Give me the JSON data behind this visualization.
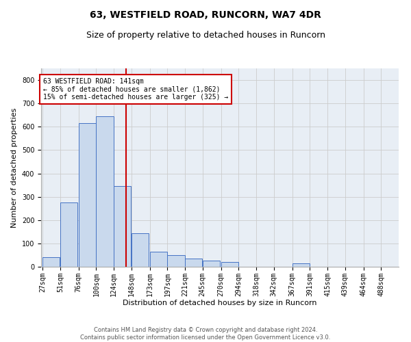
{
  "title": "63, WESTFIELD ROAD, RUNCORN, WA7 4DR",
  "subtitle": "Size of property relative to detached houses in Runcorn",
  "xlabel": "Distribution of detached houses by size in Runcorn",
  "ylabel": "Number of detached properties",
  "bins": [
    27,
    51,
    76,
    100,
    124,
    148,
    173,
    197,
    221,
    245,
    270,
    294,
    318,
    342,
    367,
    391,
    415,
    439,
    464,
    488,
    512
  ],
  "counts": [
    40,
    275,
    615,
    645,
    345,
    145,
    65,
    50,
    35,
    25,
    20,
    0,
    0,
    0,
    15,
    0,
    0,
    0,
    0,
    0
  ],
  "bar_color": "#c9d9ed",
  "bar_edge_color": "#4472c4",
  "vline_x": 141,
  "vline_color": "#cc0000",
  "annotation_text": "63 WESTFIELD ROAD: 141sqm\n← 85% of detached houses are smaller (1,862)\n15% of semi-detached houses are larger (325) →",
  "annotation_box_color": "#ffffff",
  "annotation_box_edge": "#cc0000",
  "ylim": [
    0,
    850
  ],
  "yticks": [
    0,
    100,
    200,
    300,
    400,
    500,
    600,
    700,
    800
  ],
  "grid_color": "#cccccc",
  "bg_color": "#e8eef5",
  "footer_text": "Contains HM Land Registry data © Crown copyright and database right 2024.\nContains public sector information licensed under the Open Government Licence v3.0.",
  "title_fontsize": 10,
  "subtitle_fontsize": 9,
  "xlabel_fontsize": 8,
  "ylabel_fontsize": 8,
  "tick_fontsize": 7,
  "annotation_fontsize": 7,
  "footer_fontsize": 6
}
